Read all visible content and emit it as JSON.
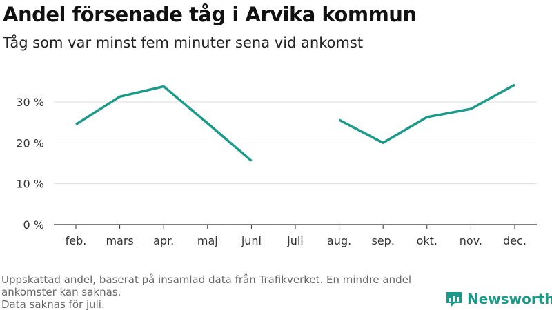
{
  "title": "Andel försenade tåg i Arvika kommun",
  "subtitle": "Tåg som var minst fem minuter sena vid ankomst",
  "footnote": {
    "line1": "Uppskattad andel, baserat på insamlad data från Trafikverket. En mindre andel ankomster kan saknas.",
    "line2": "Data saknas för juli."
  },
  "brand": {
    "name": "Newsworthy",
    "logo_icon": "bar-chart-icon",
    "color": "#1a9a8a"
  },
  "chart_data": {
    "type": "line",
    "categories": [
      "feb.",
      "mars",
      "apr.",
      "maj",
      "juni",
      "juli",
      "aug.",
      "sep.",
      "okt.",
      "nov.",
      "dec."
    ],
    "series": [
      {
        "values": [
          24.5,
          31.3,
          33.8,
          24.8,
          15.6,
          null,
          25.6,
          20.0,
          26.3,
          28.3,
          34.2
        ],
        "color": "#1a9a8a"
      }
    ],
    "y_ticks": [
      {
        "value": 0,
        "label": "0 %"
      },
      {
        "value": 10,
        "label": "10 %"
      },
      {
        "value": 20,
        "label": "20 %"
      },
      {
        "value": 30,
        "label": "30 %"
      }
    ],
    "ylim": [
      0,
      35
    ],
    "grid": true,
    "legend": "none"
  }
}
